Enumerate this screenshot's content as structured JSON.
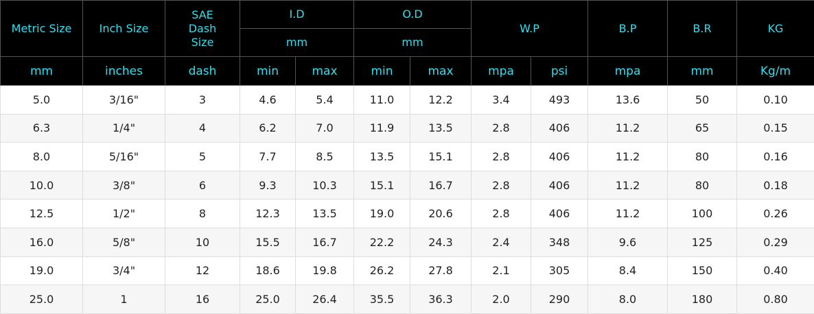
{
  "table": {
    "header_top": [
      "Metric Size",
      "Inch Size",
      "SAE Dash Size",
      "I.D",
      "O.D",
      "W.P",
      "B.P",
      "B.R",
      "KG"
    ],
    "header_sub": [
      "mm",
      "mm"
    ],
    "units": [
      "mm",
      "inches",
      "dash",
      "min",
      "max",
      "min",
      "max",
      "mpa",
      "psi",
      "mpa",
      "mm",
      "Kg/m"
    ],
    "rows": [
      [
        "5.0",
        "3/16\"",
        "3",
        "4.6",
        "5.4",
        "11.0",
        "12.2",
        "3.4",
        "493",
        "13.6",
        "50",
        "0.10"
      ],
      [
        "6.3",
        "1/4\"",
        "4",
        "6.2",
        "7.0",
        "11.9",
        "13.5",
        "2.8",
        "406",
        "11.2",
        "65",
        "0.15"
      ],
      [
        "8.0",
        "5/16\"",
        "5",
        "7.7",
        "8.5",
        "13.5",
        "15.1",
        "2.8",
        "406",
        "11.2",
        "80",
        "0.16"
      ],
      [
        "10.0",
        "3/8\"",
        "6",
        "9.3",
        "10.3",
        "15.1",
        "16.7",
        "2.8",
        "406",
        "11.2",
        "80",
        "0.18"
      ],
      [
        "12.5",
        "1/2\"",
        "8",
        "12.3",
        "13.5",
        "19.0",
        "20.6",
        "2.8",
        "406",
        "11.2",
        "100",
        "0.26"
      ],
      [
        "16.0",
        "5/8\"",
        "10",
        "15.5",
        "16.7",
        "22.2",
        "24.3",
        "2.4",
        "348",
        "9.6",
        "125",
        "0.29"
      ],
      [
        "19.0",
        "3/4\"",
        "12",
        "18.6",
        "19.8",
        "26.2",
        "27.8",
        "2.1",
        "305",
        "8.4",
        "150",
        "0.40"
      ],
      [
        "25.0",
        "1",
        "16",
        "25.0",
        "26.4",
        "35.5",
        "36.3",
        "2.0",
        "290",
        "8.0",
        "180",
        "0.80"
      ]
    ]
  }
}
